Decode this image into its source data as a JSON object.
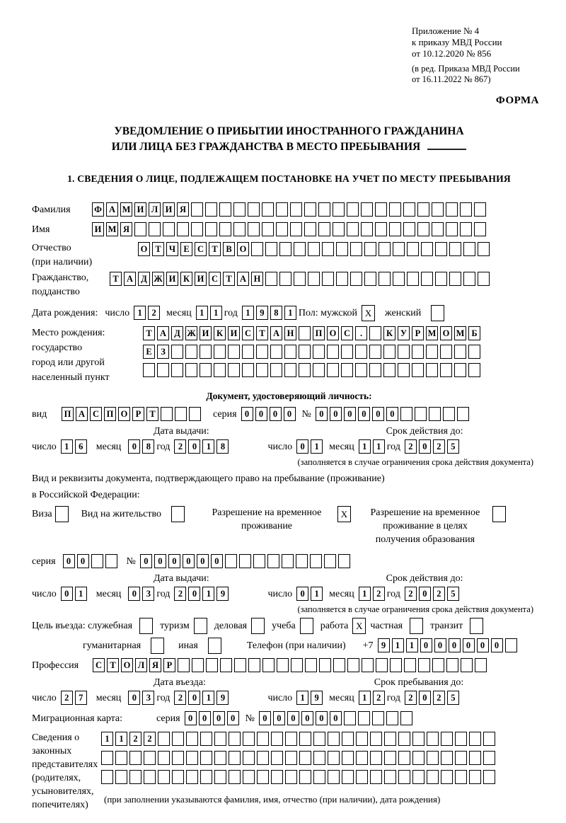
{
  "header": {
    "appendix": [
      "Приложение № 4",
      "к приказу МВД России",
      "от 10.12.2020 № 856"
    ],
    "appendix_note": [
      "(в ред. Приказа МВД России",
      "от 16.11.2022 № 867)"
    ],
    "form_marker": "ФОРМА"
  },
  "title": {
    "line1": "УВЕДОМЛЕНИЕ О ПРИБЫТИИ ИНОСТРАННОГО ГРАЖДАНИНА",
    "line2": "ИЛИ ЛИЦА БЕЗ ГРАЖДАНСТВА В МЕСТО ПРЕБЫВАНИЯ"
  },
  "section1_heading": "1. СВЕДЕНИЯ О ЛИЦЕ, ПОДЛЕЖАЩЕМ ПОСТАНОВКЕ НА УЧЕТ ПО МЕСТУ ПРЕБЫВАНИЯ",
  "labels": {
    "day": "число",
    "month": "месяц",
    "year": "год",
    "series": "серия",
    "number": "№"
  },
  "person": {
    "surname": {
      "label": "Фамилия",
      "v": "ФАМИЛИЯ",
      "n": 28
    },
    "name": {
      "label": "Имя",
      "v": "ИМЯ",
      "n": 28
    },
    "patronymic": {
      "label": "Отчество",
      "label2": "(при наличии)",
      "v": "ОТЧЕСТВО",
      "n": 25
    },
    "citizenship": {
      "label": "Гражданство,",
      "label2": "подданство",
      "v": "ТАДЖИКИСТАН",
      "n": 27
    },
    "birth_date": {
      "label": "Дата рождения:",
      "day": {
        "v": "12",
        "n": 2
      },
      "month": {
        "v": "11",
        "n": 2
      },
      "year": {
        "v": "1981",
        "n": 4
      }
    },
    "sex": {
      "label": "Пол: мужской",
      "male": "X",
      "female_label": "женский",
      "female": ""
    },
    "birth_place": {
      "labels": [
        "Место рождения:",
        "государство",
        "город или другой",
        "населенный пункт"
      ],
      "rows": [
        {
          "v": "ТАДЖИКИСТАН ПОС. КУРМОМБ",
          "n": 24
        },
        {
          "v": "ЕЗ",
          "n": 24
        },
        {
          "v": "",
          "n": 24
        }
      ]
    }
  },
  "identity_doc": {
    "heading": "Документ, удостоверяющий личность:",
    "kind": {
      "label": "вид",
      "v": "ПАСПОРТ",
      "n": 10
    },
    "series": {
      "v": "0000",
      "n": 4
    },
    "number": {
      "v": "000000",
      "n": 11
    },
    "issue_heading": "Дата выдачи:",
    "expiry_heading": "Срок действия до:",
    "issue": {
      "day": {
        "v": "16",
        "n": 2
      },
      "month": {
        "v": "08",
        "n": 2
      },
      "year": {
        "v": "2018",
        "n": 4
      }
    },
    "expiry": {
      "day": {
        "v": "01",
        "n": 2
      },
      "month": {
        "v": "11",
        "n": 2
      },
      "year": {
        "v": "2025",
        "n": 4
      }
    },
    "note": "(заполняется в случае ограничения срока действия документа)"
  },
  "residence_doc": {
    "intro1": "Вид и реквизиты документа, подтверждающего право на пребывание (проживание)",
    "intro2": "в Российской Федерации:",
    "options": [
      {
        "label": "Виза",
        "checked": ""
      },
      {
        "label": "Вид на жительство",
        "checked": ""
      },
      {
        "label1": "Разрешение на временное",
        "label2": "проживание",
        "checked": "X"
      },
      {
        "label1": "Разрешение на временное",
        "label2": "проживание в целях",
        "label3": "получения образования",
        "checked": ""
      }
    ],
    "series": {
      "v": "00",
      "n": 4
    },
    "number": {
      "v": "000000",
      "n": 15
    },
    "issue_heading": "Дата выдачи:",
    "expiry_heading": "Срок действия до:",
    "issue": {
      "day": {
        "v": "01",
        "n": 2
      },
      "month": {
        "v": "03",
        "n": 2
      },
      "year": {
        "v": "2019",
        "n": 4
      }
    },
    "expiry": {
      "day": {
        "v": "01",
        "n": 2
      },
      "month": {
        "v": "12",
        "n": 2
      },
      "year": {
        "v": "2025",
        "n": 4
      }
    },
    "note": "(заполняется в случае ограничения срока действия документа)"
  },
  "visit": {
    "purpose_label": "Цель въезда: служебная",
    "purposes_row1": [
      {
        "label": "туризм",
        "checked": ""
      },
      {
        "label": "деловая",
        "checked": ""
      },
      {
        "label": "учеба",
        "checked": ""
      },
      {
        "label": "работа",
        "checked": "X"
      },
      {
        "label": "частная",
        "checked": ""
      },
      {
        "label": "транзит",
        "checked": ""
      }
    ],
    "official_checked": "",
    "humanitarian": {
      "label": "гуманитарная",
      "checked": ""
    },
    "other": {
      "label": "иная",
      "checked": ""
    },
    "phone": {
      "label": "Телефон (при наличии)",
      "prefix": "+7",
      "v": "911000000",
      "n": 10
    },
    "profession": {
      "label": "Профессия",
      "v": "СТОЛЯР",
      "n": 28
    },
    "entry_heading": "Дата въезда:",
    "stay_heading": "Срок пребывания до:",
    "entry": {
      "day": {
        "v": "27",
        "n": 2
      },
      "month": {
        "v": "03",
        "n": 2
      },
      "year": {
        "v": "2019",
        "n": 4
      }
    },
    "stay": {
      "day": {
        "v": "19",
        "n": 2
      },
      "month": {
        "v": "12",
        "n": 2
      },
      "year": {
        "v": "2025",
        "n": 4
      }
    }
  },
  "migration_card": {
    "label": "Миграционная карта:",
    "series": {
      "v": "0000",
      "n": 4
    },
    "number": {
      "v": "000000",
      "n": 11
    }
  },
  "representatives": {
    "labels": [
      "Сведения о",
      "законных",
      "представителях",
      "(родителях,",
      "усыновителях,",
      "попечителях)"
    ],
    "rows": [
      {
        "v": "1122",
        "n": 28
      },
      {
        "v": "",
        "n": 28
      },
      {
        "v": "",
        "n": 28
      }
    ],
    "note": "(при заполнении указываются фамилия, имя, отчество (при наличии), дата рождения)"
  }
}
